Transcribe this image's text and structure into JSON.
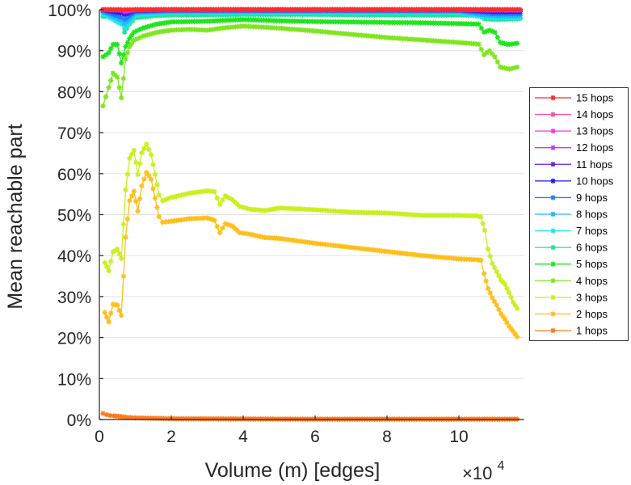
{
  "chart_data": {
    "type": "line",
    "title": "",
    "xlabel": "Volume (m) [edges]",
    "x_multiplier_label": "×10",
    "x_multiplier_exponent": "4",
    "ylabel": "Mean reachable part",
    "xlim": [
      0,
      11.7
    ],
    "ylim": [
      0,
      100
    ],
    "x_ticks": [
      0,
      2,
      4,
      6,
      8,
      10
    ],
    "x_tick_labels": [
      "0",
      "2",
      "4",
      "6",
      "8",
      "10"
    ],
    "y_ticks": [
      0,
      10,
      20,
      30,
      40,
      50,
      60,
      70,
      80,
      90,
      100
    ],
    "y_tick_labels": [
      "0%",
      "10%",
      "20%",
      "30%",
      "40%",
      "50%",
      "60%",
      "70%",
      "80%",
      "90%",
      "100%"
    ],
    "grid": "horizontal",
    "legend_position": "right",
    "marker": "star",
    "series": [
      {
        "name": "15 hops",
        "color": "#ff2a2a",
        "points": [
          [
            0.1,
            100
          ],
          [
            0.6,
            100
          ],
          [
            0.7,
            100
          ],
          [
            1.0,
            100
          ],
          [
            2,
            100
          ],
          [
            4,
            100
          ],
          [
            6,
            100
          ],
          [
            8,
            100
          ],
          [
            10,
            100
          ],
          [
            10.6,
            100
          ],
          [
            11.0,
            100
          ],
          [
            11.7,
            100
          ]
        ]
      },
      {
        "name": "14 hops",
        "color": "#ff4fa0",
        "points": [
          [
            0.1,
            100
          ],
          [
            0.6,
            100
          ],
          [
            0.7,
            100
          ],
          [
            1.0,
            100
          ],
          [
            2,
            100
          ],
          [
            4,
            100
          ],
          [
            6,
            100
          ],
          [
            8,
            100
          ],
          [
            10,
            100
          ],
          [
            10.6,
            100
          ],
          [
            11.0,
            100
          ],
          [
            11.7,
            100
          ]
        ]
      },
      {
        "name": "13 hops",
        "color": "#ff33dd",
        "points": [
          [
            0.1,
            100
          ],
          [
            0.6,
            100
          ],
          [
            0.7,
            99.8
          ],
          [
            1.0,
            100
          ],
          [
            2,
            100
          ],
          [
            4,
            100
          ],
          [
            6,
            100
          ],
          [
            8,
            100
          ],
          [
            10,
            100
          ],
          [
            10.6,
            100
          ],
          [
            11.0,
            100
          ],
          [
            11.7,
            100
          ]
        ]
      },
      {
        "name": "12 hops",
        "color": "#cc33ff",
        "points": [
          [
            0.1,
            100
          ],
          [
            0.6,
            99.9
          ],
          [
            0.7,
            99.6
          ],
          [
            1.0,
            100
          ],
          [
            2,
            100
          ],
          [
            4,
            100
          ],
          [
            6,
            100
          ],
          [
            8,
            100
          ],
          [
            10,
            100
          ],
          [
            10.6,
            100
          ],
          [
            11.0,
            99.9
          ],
          [
            11.7,
            99.9
          ]
        ]
      },
      {
        "name": "11 hops",
        "color": "#6a1fe0",
        "points": [
          [
            0.1,
            100
          ],
          [
            0.6,
            99.7
          ],
          [
            0.7,
            99.2
          ],
          [
            1.0,
            99.9
          ],
          [
            2,
            100
          ],
          [
            4,
            100
          ],
          [
            6,
            100
          ],
          [
            8,
            100
          ],
          [
            10,
            100
          ],
          [
            10.6,
            99.9
          ],
          [
            11.0,
            99.8
          ],
          [
            11.7,
            99.8
          ]
        ]
      },
      {
        "name": "10 hops",
        "color": "#1a1af0",
        "points": [
          [
            0.1,
            99.9
          ],
          [
            0.6,
            99.2
          ],
          [
            0.7,
            98.8
          ],
          [
            1.0,
            99.8
          ],
          [
            2,
            99.9
          ],
          [
            4,
            99.9
          ],
          [
            6,
            99.9
          ],
          [
            8,
            99.9
          ],
          [
            10,
            99.9
          ],
          [
            10.6,
            99.7
          ],
          [
            11.0,
            99.5
          ],
          [
            11.7,
            99.5
          ]
        ]
      },
      {
        "name": "9 hops",
        "color": "#1f7fff",
        "points": [
          [
            0.1,
            99.7
          ],
          [
            0.6,
            98.2
          ],
          [
            0.7,
            97.6
          ],
          [
            1.0,
            99.5
          ],
          [
            2,
            99.8
          ],
          [
            4,
            99.8
          ],
          [
            6,
            99.8
          ],
          [
            8,
            99.8
          ],
          [
            10,
            99.8
          ],
          [
            10.6,
            99.3
          ],
          [
            11.0,
            99.0
          ],
          [
            11.7,
            99.0
          ]
        ]
      },
      {
        "name": "8 hops",
        "color": "#22b8ff",
        "points": [
          [
            0.1,
            99.4
          ],
          [
            0.6,
            97.4
          ],
          [
            0.7,
            96.5
          ],
          [
            1.0,
            99.2
          ],
          [
            2,
            99.6
          ],
          [
            4,
            99.6
          ],
          [
            6,
            99.6
          ],
          [
            8,
            99.6
          ],
          [
            10,
            99.6
          ],
          [
            10.6,
            98.8
          ],
          [
            11.0,
            98.5
          ],
          [
            11.7,
            98.5
          ]
        ]
      },
      {
        "name": "7 hops",
        "color": "#22e6e6",
        "points": [
          [
            0.1,
            99.0
          ],
          [
            0.6,
            96.5
          ],
          [
            0.7,
            95.5
          ],
          [
            1.0,
            98.7
          ],
          [
            2,
            99.3
          ],
          [
            4,
            99.3
          ],
          [
            6,
            99.3
          ],
          [
            8,
            99.3
          ],
          [
            10,
            99.3
          ],
          [
            10.6,
            98.3
          ],
          [
            11.0,
            98.0
          ],
          [
            11.7,
            98.0
          ]
        ]
      },
      {
        "name": "6 hops",
        "color": "#19e68c",
        "points": [
          [
            0.1,
            98.3
          ],
          [
            0.3,
            98.5
          ],
          [
            0.5,
            98.6
          ],
          [
            0.61,
            97.0
          ],
          [
            0.7,
            94.5
          ],
          [
            0.84,
            96.5
          ],
          [
            1.0,
            98.0
          ],
          [
            1.5,
            98.5
          ],
          [
            2,
            98.7
          ],
          [
            4,
            98.8
          ],
          [
            6,
            98.8
          ],
          [
            8,
            98.7
          ],
          [
            10,
            98.7
          ],
          [
            10.6,
            98.6
          ],
          [
            10.7,
            97.8
          ],
          [
            11.0,
            97.6
          ],
          [
            11.7,
            97.8
          ]
        ]
      },
      {
        "name": "5 hops",
        "color": "#1ee61e",
        "points": [
          [
            0.1,
            88.5
          ],
          [
            0.26,
            89.5
          ],
          [
            0.38,
            91.5
          ],
          [
            0.5,
            91.5
          ],
          [
            0.61,
            87.0
          ],
          [
            0.73,
            91.0
          ],
          [
            0.84,
            93.0
          ],
          [
            0.96,
            94.5
          ],
          [
            1.2,
            95.5
          ],
          [
            1.6,
            96.5
          ],
          [
            2,
            97.0
          ],
          [
            3,
            97.2
          ],
          [
            4,
            97.6
          ],
          [
            5,
            97.3
          ],
          [
            6,
            97.1
          ],
          [
            7,
            97.0
          ],
          [
            8,
            96.9
          ],
          [
            9,
            96.8
          ],
          [
            10,
            96.6
          ],
          [
            10.55,
            96.5
          ],
          [
            10.7,
            94.5
          ],
          [
            10.85,
            95.0
          ],
          [
            11.0,
            94.5
          ],
          [
            11.15,
            92.0
          ],
          [
            11.4,
            91.5
          ],
          [
            11.62,
            91.8
          ]
        ]
      },
      {
        "name": "4 hops",
        "color": "#7ee61e",
        "points": [
          [
            0.1,
            76.5
          ],
          [
            0.26,
            81.0
          ],
          [
            0.38,
            84.5
          ],
          [
            0.5,
            83.5
          ],
          [
            0.61,
            78.5
          ],
          [
            0.73,
            88.0
          ],
          [
            0.84,
            91.0
          ],
          [
            0.96,
            92.5
          ],
          [
            1.2,
            93.5
          ],
          [
            1.6,
            94.5
          ],
          [
            2,
            95.0
          ],
          [
            2.5,
            95.2
          ],
          [
            3,
            95.0
          ],
          [
            3.5,
            95.6
          ],
          [
            4,
            96.0
          ],
          [
            5,
            95.5
          ],
          [
            6,
            94.8
          ],
          [
            7,
            94.0
          ],
          [
            8,
            93.2
          ],
          [
            9,
            92.6
          ],
          [
            10,
            92.0
          ],
          [
            10.55,
            91.6
          ],
          [
            10.7,
            89.0
          ],
          [
            10.85,
            90.0
          ],
          [
            11.0,
            88.5
          ],
          [
            11.15,
            86.0
          ],
          [
            11.4,
            85.5
          ],
          [
            11.62,
            86.0
          ]
        ]
      },
      {
        "name": "3 hops",
        "color": "#c8f01e",
        "points": [
          [
            0.15,
            38.3
          ],
          [
            0.26,
            36.3
          ],
          [
            0.38,
            40.9
          ],
          [
            0.5,
            41.6
          ],
          [
            0.61,
            39.3
          ],
          [
            0.73,
            56.0
          ],
          [
            0.84,
            63.7
          ],
          [
            0.96,
            65.7
          ],
          [
            1.07,
            59.8
          ],
          [
            1.18,
            65.1
          ],
          [
            1.31,
            67.2
          ],
          [
            1.44,
            64.6
          ],
          [
            1.55,
            59.8
          ],
          [
            1.66,
            54.8
          ],
          [
            1.76,
            53.4
          ],
          [
            2.0,
            54.2
          ],
          [
            2.5,
            55.2
          ],
          [
            3.0,
            55.8
          ],
          [
            3.2,
            55.6
          ],
          [
            3.35,
            52.5
          ],
          [
            3.5,
            54.6
          ],
          [
            3.7,
            53.6
          ],
          [
            3.9,
            52.0
          ],
          [
            4.2,
            51.3
          ],
          [
            4.6,
            51.0
          ],
          [
            5.0,
            51.6
          ],
          [
            6.0,
            51.2
          ],
          [
            7.0,
            50.6
          ],
          [
            8.0,
            50.4
          ],
          [
            9.0,
            49.8
          ],
          [
            10.0,
            49.8
          ],
          [
            10.5,
            49.7
          ],
          [
            10.61,
            49.4
          ],
          [
            10.72,
            46.2
          ],
          [
            10.81,
            41.6
          ],
          [
            10.93,
            38.1
          ],
          [
            11.05,
            36.1
          ],
          [
            11.17,
            34.0
          ],
          [
            11.28,
            33.0
          ],
          [
            11.39,
            31.0
          ],
          [
            11.51,
            28.6
          ],
          [
            11.62,
            27.1
          ]
        ]
      },
      {
        "name": "2 hops",
        "color": "#ffbf1a",
        "points": [
          [
            0.15,
            26.1
          ],
          [
            0.26,
            23.8
          ],
          [
            0.38,
            28.1
          ],
          [
            0.5,
            27.9
          ],
          [
            0.61,
            25.4
          ],
          [
            0.73,
            44.5
          ],
          [
            0.84,
            53.4
          ],
          [
            0.96,
            55.7
          ],
          [
            1.07,
            50.8
          ],
          [
            1.18,
            57.0
          ],
          [
            1.31,
            60.3
          ],
          [
            1.44,
            58.6
          ],
          [
            1.55,
            54.0
          ],
          [
            1.66,
            49.5
          ],
          [
            1.76,
            48.1
          ],
          [
            2.0,
            48.4
          ],
          [
            2.5,
            49.0
          ],
          [
            3.0,
            49.2
          ],
          [
            3.2,
            48.6
          ],
          [
            3.35,
            45.6
          ],
          [
            3.5,
            47.8
          ],
          [
            3.7,
            47.2
          ],
          [
            3.9,
            45.6
          ],
          [
            4.2,
            45.2
          ],
          [
            4.6,
            44.4
          ],
          [
            5.0,
            44.2
          ],
          [
            6.0,
            43.0
          ],
          [
            7.0,
            42.0
          ],
          [
            8.0,
            41.0
          ],
          [
            9.0,
            40.0
          ],
          [
            10.0,
            39.2
          ],
          [
            10.5,
            39.0
          ],
          [
            10.61,
            38.9
          ],
          [
            10.7,
            35.6
          ],
          [
            10.81,
            32.0
          ],
          [
            10.93,
            29.7
          ],
          [
            11.05,
            27.9
          ],
          [
            11.17,
            25.8
          ],
          [
            11.28,
            24.5
          ],
          [
            11.39,
            22.8
          ],
          [
            11.51,
            21.5
          ],
          [
            11.62,
            20.2
          ]
        ]
      },
      {
        "name": "1 hops",
        "color": "#ff7a1a",
        "points": [
          [
            0.1,
            1.5
          ],
          [
            0.2,
            1.2
          ],
          [
            0.3,
            1.0
          ],
          [
            0.4,
            0.9
          ],
          [
            0.6,
            0.7
          ],
          [
            0.8,
            0.5
          ],
          [
            1.0,
            0.4
          ],
          [
            1.5,
            0.3
          ],
          [
            2,
            0.2
          ],
          [
            4,
            0.15
          ],
          [
            6,
            0.1
          ],
          [
            8,
            0.1
          ],
          [
            10,
            0.1
          ],
          [
            11.0,
            0.1
          ],
          [
            11.62,
            0.1
          ]
        ]
      }
    ]
  }
}
